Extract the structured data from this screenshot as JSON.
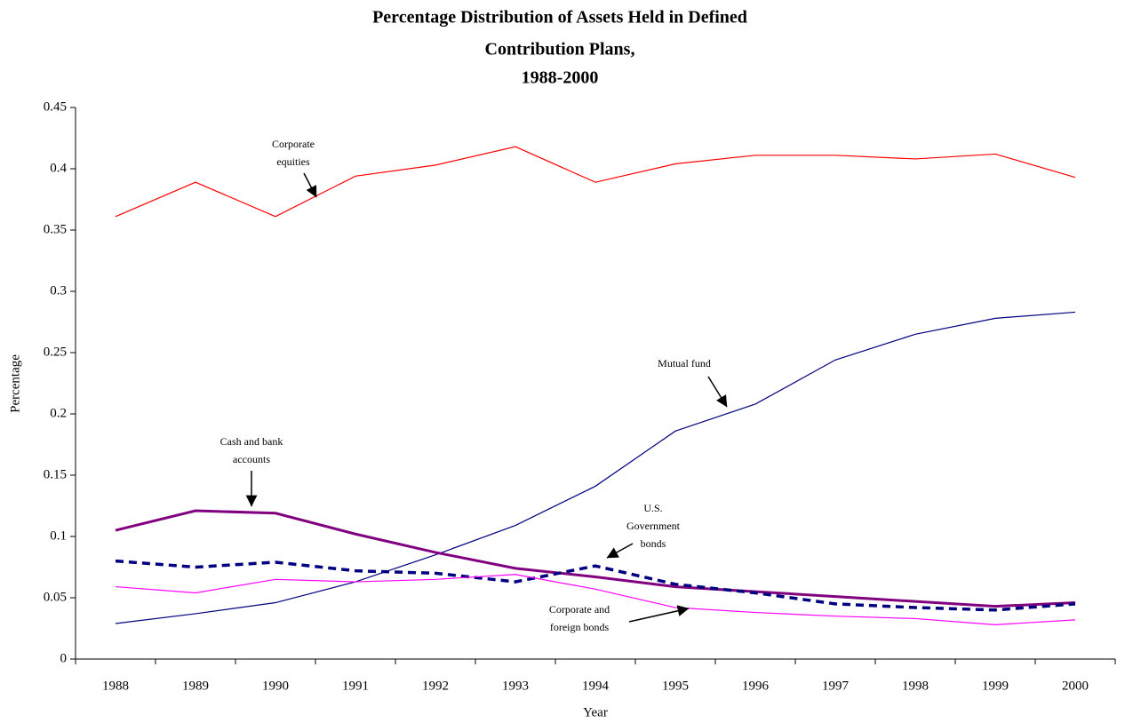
{
  "chart_data": {
    "type": "line",
    "title": [
      "Percentage Distribution of Assets Held in Defined",
      "Contribution Plans,",
      "1988-2000"
    ],
    "x_label": "Year",
    "y_label": "Percentage",
    "categories": [
      "1988",
      "1989",
      "1990",
      "1991",
      "1992",
      "1993",
      "1994",
      "1995",
      "1996",
      "1997",
      "1998",
      "1999",
      "2000"
    ],
    "ylim": [
      0,
      0.45
    ],
    "yticks": [
      0,
      0.05,
      0.1,
      0.15,
      0.2,
      0.25,
      0.3,
      0.35,
      0.4,
      0.45
    ],
    "series": [
      {
        "name": "Corporate equities",
        "color": "#ff0000",
        "values": [
          0.361,
          0.389,
          0.361,
          0.394,
          0.403,
          0.418,
          0.389,
          0.404,
          0.411,
          0.411,
          0.408,
          0.412,
          0.393
        ]
      },
      {
        "name": "Mutual fund",
        "color": "#000080",
        "values": [
          0.029,
          0.037,
          0.046,
          0.063,
          0.085,
          0.109,
          0.141,
          0.186,
          0.208,
          0.244,
          0.265,
          0.278,
          0.283
        ]
      },
      {
        "name": "Cash and bank accounts",
        "color": "#800080",
        "values": [
          0.105,
          0.121,
          0.119,
          0.102,
          0.087,
          0.074,
          0.067,
          0.059,
          0.055,
          0.051,
          0.047,
          0.043,
          0.046
        ]
      },
      {
        "name": "U.S. Government bonds",
        "color": "#000080",
        "dashed": true,
        "values": [
          0.08,
          0.075,
          0.079,
          0.072,
          0.07,
          0.063,
          0.076,
          0.061,
          0.054,
          0.045,
          0.042,
          0.04,
          0.045
        ]
      },
      {
        "name": "Corporate and foreign bonds",
        "color": "#ff00ff",
        "values": [
          0.059,
          0.054,
          0.065,
          0.063,
          0.065,
          0.069,
          0.057,
          0.042,
          0.038,
          0.035,
          0.033,
          0.028,
          0.032
        ]
      }
    ]
  }
}
